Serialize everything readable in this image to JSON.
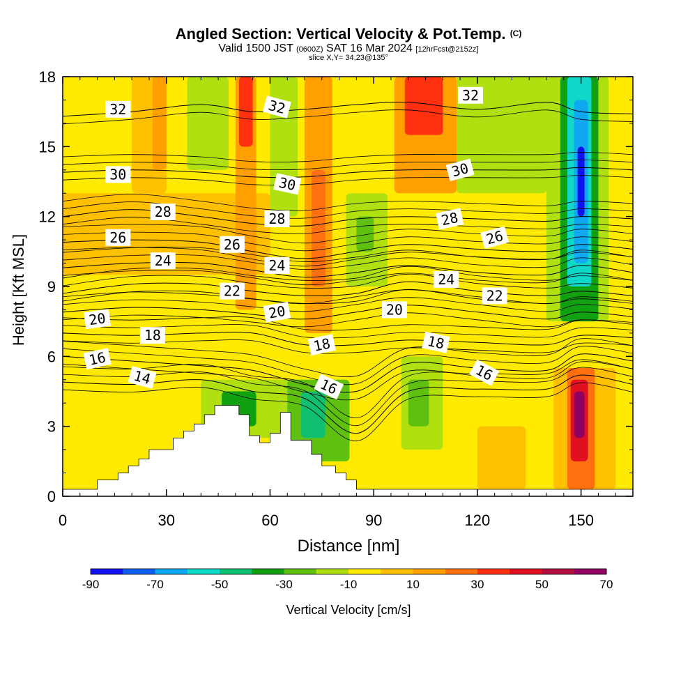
{
  "header": {
    "title_main": "Angled Section: Vertical Velocity & Pot.Temp.",
    "title_mark": "(C)",
    "valid_a": "Valid 1500 JST",
    "valid_b": "(0600Z)",
    "valid_c": "SAT 16 Mar 2024",
    "valid_d": "[12hrFcst@2152z]",
    "slice": "slice X,Y= 34,23@135°"
  },
  "chart_data": {
    "type": "heatmap",
    "xlabel": "Distance [nm]",
    "ylabel": "Height [Kft MSL]",
    "xlim": [
      0,
      165
    ],
    "ylim": [
      0,
      18
    ],
    "xticks": [
      0,
      30,
      60,
      90,
      120,
      150
    ],
    "yticks": [
      0,
      3,
      6,
      9,
      12,
      15,
      18
    ],
    "colorbar": {
      "label": "Vertical Velocity [cm/s]",
      "tick_labels": [
        "-90",
        "-70",
        "-50",
        "-30",
        "-10",
        "10",
        "30",
        "50",
        "70"
      ],
      "colors": [
        "#1010f0",
        "#1060f0",
        "#10a8f0",
        "#10d8c8",
        "#10c070",
        "#10a010",
        "#60c010",
        "#b0e010",
        "#ffea00",
        "#ffc000",
        "#ffa000",
        "#ff7010",
        "#ff3010",
        "#e01020",
        "#b01040",
        "#900060"
      ]
    },
    "cells": [
      {
        "x0": 0,
        "x1": 165,
        "y0": 0,
        "y1": 18,
        "c": "#ffea00"
      },
      {
        "x0": 0,
        "x1": 60,
        "y0": 9.5,
        "y1": 13,
        "c": "#ffc000"
      },
      {
        "x0": 20,
        "x1": 30,
        "y0": 13,
        "y1": 18,
        "c": "#ffc000"
      },
      {
        "x0": 26,
        "x1": 30,
        "y0": 14,
        "y1": 18,
        "c": "#ffa000"
      },
      {
        "x0": 50,
        "x1": 56,
        "y0": 8,
        "y1": 18,
        "c": "#ffa000"
      },
      {
        "x0": 51,
        "x1": 55,
        "y0": 15,
        "y1": 18,
        "c": "#ff3010"
      },
      {
        "x0": 70,
        "x1": 78,
        "y0": 7,
        "y1": 18,
        "c": "#ffa000"
      },
      {
        "x0": 72,
        "x1": 76,
        "y0": 9,
        "y1": 14,
        "c": "#ff7010"
      },
      {
        "x0": 96,
        "x1": 114,
        "y0": 13,
        "y1": 18,
        "c": "#ffa000"
      },
      {
        "x0": 99,
        "x1": 110,
        "y0": 15.5,
        "y1": 18,
        "c": "#ff3010"
      },
      {
        "x0": 36,
        "x1": 48,
        "y0": 14,
        "y1": 18,
        "c": "#b0e010"
      },
      {
        "x0": 60,
        "x1": 68,
        "y0": 12,
        "y1": 18,
        "c": "#b0e010"
      },
      {
        "x0": 82,
        "x1": 94,
        "y0": 9,
        "y1": 13,
        "c": "#b0e010"
      },
      {
        "x0": 85,
        "x1": 90,
        "y0": 10.5,
        "y1": 12,
        "c": "#60c010"
      },
      {
        "x0": 114,
        "x1": 140,
        "y0": 13,
        "y1": 18,
        "c": "#b0e010"
      },
      {
        "x0": 140,
        "x1": 158,
        "y0": 7.5,
        "y1": 18,
        "c": "#b0e010"
      },
      {
        "x0": 144,
        "x1": 155,
        "y0": 7.5,
        "y1": 18,
        "c": "#10a010"
      },
      {
        "x0": 146,
        "x1": 153,
        "y0": 9,
        "y1": 18,
        "c": "#10d8c8"
      },
      {
        "x0": 148,
        "x1": 152,
        "y0": 10,
        "y1": 17,
        "c": "#10a8f0"
      },
      {
        "x0": 149,
        "x1": 151,
        "y0": 12,
        "y1": 15,
        "c": "#1010f0"
      },
      {
        "x0": 40,
        "x1": 68,
        "y0": 2.5,
        "y1": 5,
        "c": "#b0e010"
      },
      {
        "x0": 46,
        "x1": 56,
        "y0": 3,
        "y1": 4.5,
        "c": "#10a010"
      },
      {
        "x0": 65,
        "x1": 83,
        "y0": 1.5,
        "y1": 5,
        "c": "#60c010"
      },
      {
        "x0": 69,
        "x1": 76,
        "y0": 2.5,
        "y1": 4.5,
        "c": "#10c070"
      },
      {
        "x0": 98,
        "x1": 110,
        "y0": 2,
        "y1": 6,
        "c": "#b0e010"
      },
      {
        "x0": 100,
        "x1": 106,
        "y0": 3,
        "y1": 5,
        "c": "#60c010"
      },
      {
        "x0": 120,
        "x1": 134,
        "y0": 0.3,
        "y1": 3,
        "c": "#ffc000"
      },
      {
        "x0": 142,
        "x1": 160,
        "y0": 0.3,
        "y1": 5.5,
        "c": "#ffc000"
      },
      {
        "x0": 146,
        "x1": 154,
        "y0": 0.3,
        "y1": 5.5,
        "c": "#ff7010"
      },
      {
        "x0": 147,
        "x1": 152,
        "y0": 1.5,
        "y1": 5,
        "c": "#e01020"
      },
      {
        "x0": 148,
        "x1": 151,
        "y0": 2.5,
        "y1": 4.5,
        "c": "#900060"
      }
    ],
    "terrain": {
      "x": [
        0,
        10,
        10,
        16,
        16,
        19,
        19,
        22,
        22,
        25,
        25,
        32,
        32,
        35,
        35,
        38,
        38,
        41,
        41,
        44,
        44,
        51,
        51,
        54,
        54,
        57,
        57,
        60,
        60,
        63,
        63,
        66,
        66,
        72,
        72,
        75,
        75,
        79,
        79,
        82,
        82,
        85,
        85,
        91,
        91,
        165
      ],
      "y": [
        0.3,
        0.3,
        0.7,
        0.7,
        1.0,
        1.0,
        1.3,
        1.3,
        1.6,
        1.6,
        2.0,
        2.0,
        2.5,
        2.5,
        2.8,
        2.8,
        3.1,
        3.1,
        3.5,
        3.5,
        3.9,
        3.9,
        3.5,
        3.5,
        2.6,
        2.6,
        2.3,
        2.3,
        2.7,
        2.7,
        3.6,
        3.6,
        2.4,
        2.4,
        1.8,
        1.8,
        1.3,
        1.3,
        1.0,
        1.0,
        0.7,
        0.7,
        0.3,
        0.3,
        0.3,
        0.3
      ]
    },
    "isentropes": {
      "levels": [
        14,
        16,
        18,
        20,
        22,
        24,
        26,
        28,
        30,
        32
      ],
      "x": [
        0,
        20,
        40,
        55,
        70,
        85,
        100,
        120,
        140,
        150,
        165
      ],
      "y": {
        "14": [
          4.9,
          4.8,
          5.0,
          4.5,
          4.2,
          2.7,
          4.5,
          4.6,
          4.6,
          5.2,
          4.8
        ],
        "16": [
          6.0,
          5.8,
          5.6,
          5.4,
          4.8,
          4.5,
          5.7,
          5.5,
          5.4,
          6.1,
          5.8
        ],
        "18": [
          7.0,
          6.9,
          7.0,
          7.0,
          6.5,
          6.5,
          6.7,
          6.6,
          6.5,
          6.9,
          6.8
        ],
        "20": [
          7.9,
          8.1,
          8.0,
          7.8,
          7.6,
          7.9,
          8.2,
          7.9,
          7.6,
          7.9,
          7.7
        ],
        "22": [
          8.7,
          9.1,
          9.1,
          8.8,
          8.6,
          8.7,
          9.2,
          8.8,
          8.6,
          8.8,
          8.6
        ],
        "24": [
          9.8,
          10.0,
          10.0,
          9.7,
          9.4,
          9.6,
          9.9,
          9.6,
          9.5,
          9.9,
          9.6
        ],
        "26": [
          10.9,
          11.0,
          10.9,
          10.5,
          10.2,
          10.5,
          10.8,
          10.6,
          10.5,
          10.8,
          10.6
        ],
        "28": [
          12.0,
          12.3,
          12.0,
          11.7,
          11.6,
          11.9,
          12.0,
          11.9,
          11.8,
          12.0,
          11.9
        ],
        "30": [
          13.9,
          14.0,
          13.9,
          13.7,
          13.7,
          13.9,
          14.0,
          14.0,
          14.0,
          14.1,
          14.0
        ],
        "32": [
          16.3,
          16.5,
          16.8,
          16.5,
          16.6,
          16.8,
          16.9,
          16.6,
          16.9,
          16.5,
          16.4
        ]
      },
      "extra_lines": [
        {
          "dy": -0.33
        },
        {
          "dy": 0.33
        },
        {
          "dy": 0.66
        }
      ],
      "labels": [
        {
          "text": "32",
          "x": 16,
          "y": 16.6,
          "rot": 0
        },
        {
          "text": "32",
          "x": 62,
          "y": 16.7,
          "rot": 15
        },
        {
          "text": "32",
          "x": 118,
          "y": 17.2,
          "rot": 0
        },
        {
          "text": "30",
          "x": 16,
          "y": 13.8,
          "rot": 0
        },
        {
          "text": "30",
          "x": 65,
          "y": 13.4,
          "rot": 12
        },
        {
          "text": "30",
          "x": 115,
          "y": 14.0,
          "rot": -15
        },
        {
          "text": "28",
          "x": 29,
          "y": 12.2,
          "rot": 0
        },
        {
          "text": "28",
          "x": 62,
          "y": 11.9,
          "rot": 0
        },
        {
          "text": "28",
          "x": 112,
          "y": 11.9,
          "rot": -12
        },
        {
          "text": "26",
          "x": 16,
          "y": 11.1,
          "rot": 0
        },
        {
          "text": "26",
          "x": 49,
          "y": 10.8,
          "rot": 0
        },
        {
          "text": "26",
          "x": 125,
          "y": 11.1,
          "rot": -15
        },
        {
          "text": "24",
          "x": 29,
          "y": 10.1,
          "rot": 0
        },
        {
          "text": "24",
          "x": 62,
          "y": 9.9,
          "rot": 0
        },
        {
          "text": "24",
          "x": 111,
          "y": 9.3,
          "rot": 0
        },
        {
          "text": "22",
          "x": 49,
          "y": 8.8,
          "rot": 0
        },
        {
          "text": "22",
          "x": 125,
          "y": 8.6,
          "rot": 0
        },
        {
          "text": "20",
          "x": 10,
          "y": 7.6,
          "rot": -8
        },
        {
          "text": "20",
          "x": 62,
          "y": 7.9,
          "rot": -10
        },
        {
          "text": "20",
          "x": 96,
          "y": 8.0,
          "rot": 0
        },
        {
          "text": "18",
          "x": 26,
          "y": 6.9,
          "rot": 0
        },
        {
          "text": "18",
          "x": 75,
          "y": 6.5,
          "rot": -12
        },
        {
          "text": "18",
          "x": 108,
          "y": 6.6,
          "rot": 12
        },
        {
          "text": "16",
          "x": 10,
          "y": 5.9,
          "rot": -12
        },
        {
          "text": "16",
          "x": 77,
          "y": 4.7,
          "rot": 25
        },
        {
          "text": "16",
          "x": 122,
          "y": 5.3,
          "rot": 28
        },
        {
          "text": "14",
          "x": 23,
          "y": 5.1,
          "rot": 15
        }
      ]
    }
  }
}
